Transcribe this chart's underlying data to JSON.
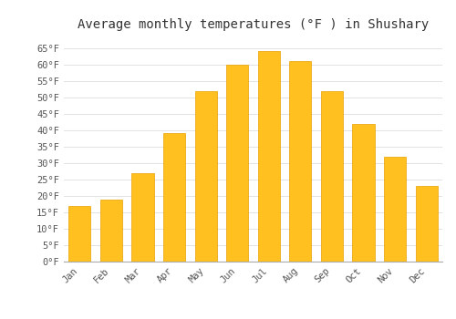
{
  "title": "Average monthly temperatures (°F ) in Shushary",
  "months": [
    "Jan",
    "Feb",
    "Mar",
    "Apr",
    "May",
    "Jun",
    "Jul",
    "Aug",
    "Sep",
    "Oct",
    "Nov",
    "Dec"
  ],
  "values": [
    17,
    19,
    27,
    39,
    52,
    60,
    64,
    61,
    52,
    42,
    32,
    23
  ],
  "bar_color": "#FFC020",
  "bar_edge_color": "#E8A000",
  "background_color": "#FFFFFF",
  "plot_bg_color": "#FFFFFF",
  "grid_color": "#DDDDDD",
  "text_color": "#555555",
  "ylim": [
    0,
    68
  ],
  "yticks": [
    0,
    5,
    10,
    15,
    20,
    25,
    30,
    35,
    40,
    45,
    50,
    55,
    60,
    65
  ],
  "title_fontsize": 10,
  "tick_fontsize": 7.5,
  "font_family": "monospace"
}
